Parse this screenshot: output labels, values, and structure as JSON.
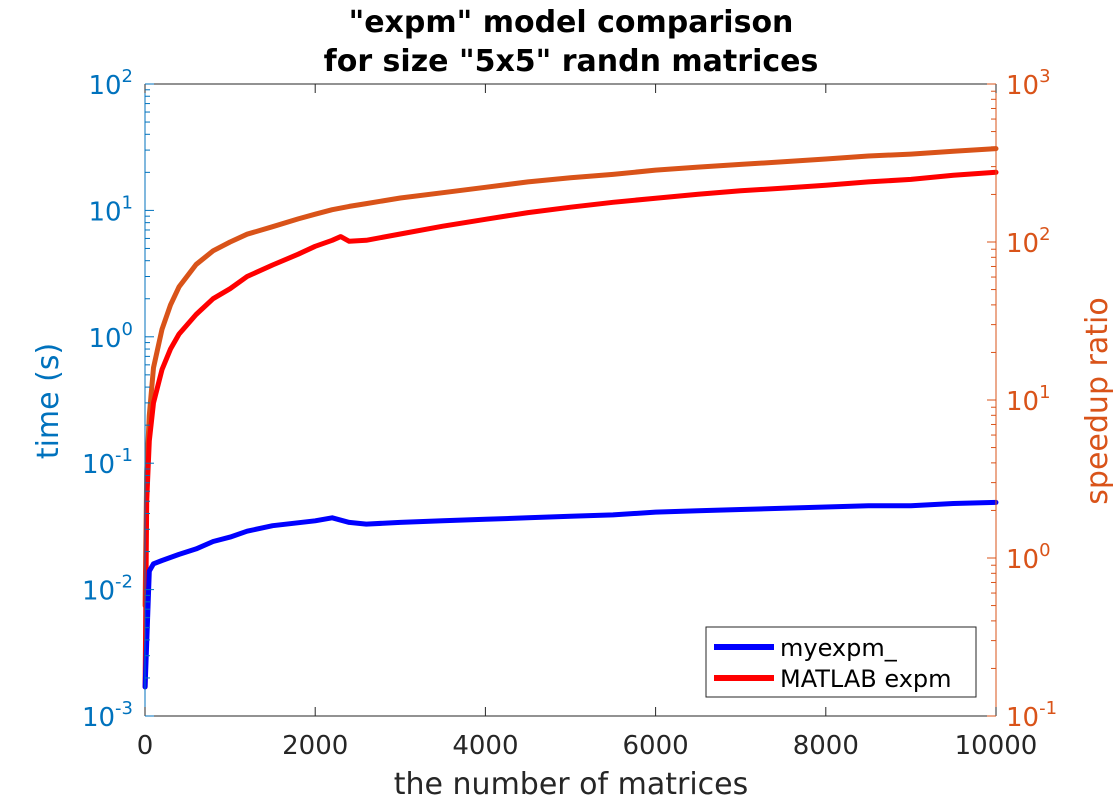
{
  "chart_data": {
    "type": "line",
    "title": [
      "\"expm\" model comparison",
      "for size \"5x5\" randn matrices"
    ],
    "xlabel": "the number of matrices",
    "ylabel_left": "time (s)",
    "ylabel_right": "speedup ratio",
    "xlim": [
      0,
      10000
    ],
    "ylim_left": [
      0.001,
      100
    ],
    "ylim_right": [
      0.1,
      1000
    ],
    "y_scale": "log",
    "x_ticks": [
      0,
      2000,
      4000,
      6000,
      8000,
      10000
    ],
    "y_left_ticks": [
      -3,
      -2,
      -1,
      0,
      1,
      2
    ],
    "y_right_ticks": [
      -1,
      0,
      1,
      2,
      3
    ],
    "tick_base": "10",
    "grid": false,
    "legend_position": "bottom-right",
    "colors": {
      "left_axis": "#0072BD",
      "right_axis": "#D95319",
      "myexpm": "#0000FF",
      "matlab": "#FF0000",
      "speedup": "#D95319"
    },
    "series": [
      {
        "name": "myexpm_",
        "axis": "left",
        "x": [
          1,
          50,
          100,
          200,
          400,
          600,
          800,
          1000,
          1200,
          1500,
          2000,
          2200,
          2400,
          2600,
          3000,
          3500,
          4000,
          4500,
          5000,
          5500,
          6000,
          6500,
          7000,
          7500,
          8000,
          8500,
          9000,
          9500,
          10000
        ],
        "values": [
          0.0017,
          0.014,
          0.016,
          0.017,
          0.019,
          0.021,
          0.024,
          0.026,
          0.029,
          0.032,
          0.035,
          0.037,
          0.034,
          0.033,
          0.034,
          0.035,
          0.036,
          0.037,
          0.038,
          0.039,
          0.041,
          0.042,
          0.043,
          0.044,
          0.045,
          0.046,
          0.046,
          0.048,
          0.049
        ]
      },
      {
        "name": "MATLAB expm",
        "axis": "left",
        "x": [
          1,
          20,
          50,
          100,
          200,
          300,
          400,
          600,
          800,
          1000,
          1200,
          1500,
          1800,
          2000,
          2200,
          2300,
          2400,
          2600,
          3000,
          3500,
          4000,
          4500,
          5000,
          5500,
          6000,
          6500,
          7000,
          7500,
          8000,
          8500,
          9000,
          9500,
          10000
        ],
        "values": [
          0.0017,
          0.05,
          0.15,
          0.3,
          0.55,
          0.8,
          1.05,
          1.5,
          2.0,
          2.4,
          3.0,
          3.7,
          4.5,
          5.2,
          5.8,
          6.2,
          5.7,
          5.8,
          6.5,
          7.5,
          8.5,
          9.6,
          10.6,
          11.6,
          12.5,
          13.4,
          14.3,
          15.0,
          15.8,
          16.8,
          17.6,
          19.0,
          20.0
        ]
      },
      {
        "name": "speedup",
        "axis": "right",
        "x": [
          1,
          20,
          50,
          100,
          200,
          300,
          400,
          600,
          800,
          1000,
          1200,
          1500,
          1800,
          2000,
          2200,
          2400,
          2600,
          3000,
          3500,
          4000,
          4500,
          5000,
          5500,
          6000,
          6500,
          7000,
          7500,
          8000,
          8500,
          9000,
          9500,
          10000
        ],
        "values": [
          0.5,
          3.5,
          8,
          16,
          28,
          40,
          52,
          72,
          88,
          100,
          112,
          125,
          140,
          150,
          160,
          168,
          175,
          190,
          205,
          222,
          240,
          255,
          268,
          285,
          298,
          310,
          322,
          335,
          350,
          360,
          375,
          390
        ]
      }
    ]
  }
}
